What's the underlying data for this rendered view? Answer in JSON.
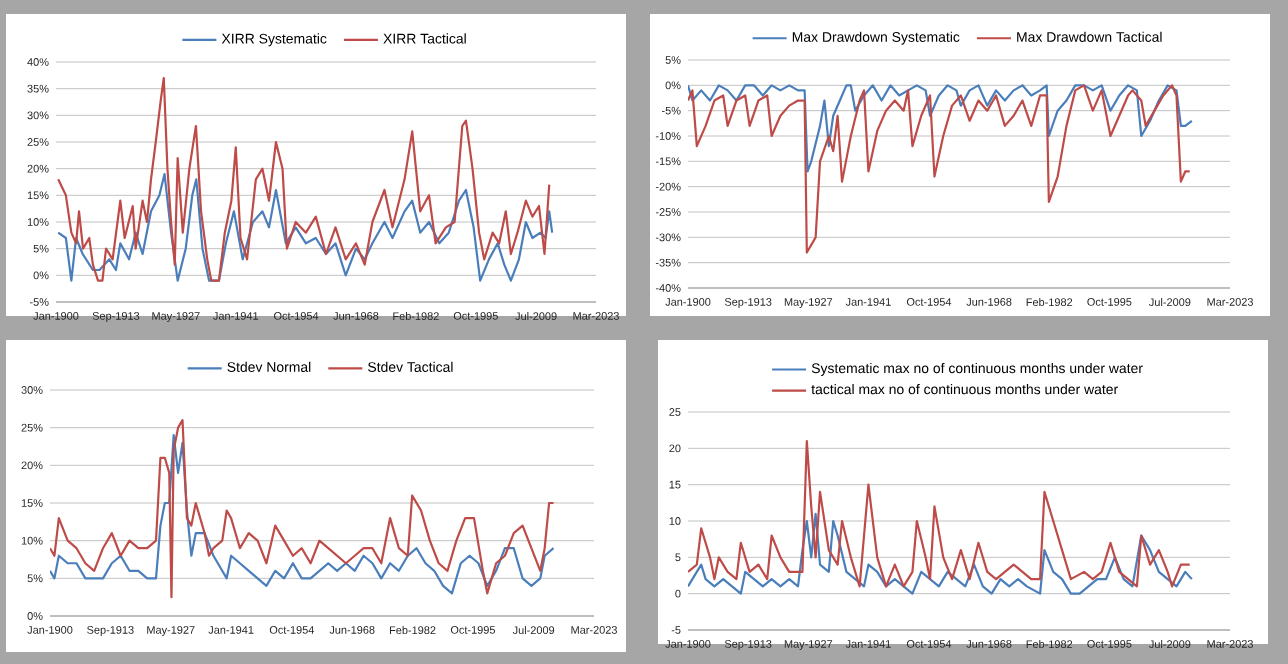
{
  "chart_data": [
    {
      "type": "line",
      "legend": "top",
      "grid": "y",
      "xlim": [
        "1900-01",
        "2023-03"
      ],
      "ylim": [
        -5,
        40
      ],
      "xticks": [
        {
          "value": "1900-01",
          "label": "Jan-1900"
        },
        {
          "value": "1913-09",
          "label": "Sep-1913"
        },
        {
          "value": "1927-05",
          "label": "May-1927"
        },
        {
          "value": "1941-01",
          "label": "Jan-1941"
        },
        {
          "value": "1954-10",
          "label": "Oct-1954"
        },
        {
          "value": "1968-06",
          "label": "Jun-1968"
        },
        {
          "value": "1982-02",
          "label": "Feb-1982"
        },
        {
          "value": "1995-10",
          "label": "Oct-1995"
        },
        {
          "value": "2009-07",
          "label": "Jul-2009"
        },
        {
          "value": "2023-03",
          "label": "Mar-2023"
        }
      ],
      "yticks": [
        {
          "value": -5,
          "label": "-5%"
        },
        {
          "value": 0,
          "label": "0%"
        },
        {
          "value": 5,
          "label": "5%"
        },
        {
          "value": 10,
          "label": "10%"
        },
        {
          "value": 15,
          "label": "15%"
        },
        {
          "value": 20,
          "label": "20%"
        },
        {
          "value": 25,
          "label": "25%"
        },
        {
          "value": 30,
          "label": "30%"
        },
        {
          "value": 35,
          "label": "35%"
        },
        {
          "value": 40,
          "label": "40%"
        }
      ],
      "series": [
        {
          "name": "XIRR Systematic",
          "color": "#4a7ebb",
          "x": [
            "1900-07",
            "1902-04",
            "1903-07",
            "1904-08",
            "1906-02",
            "1908-06",
            "1909-12",
            "1912-03",
            "1913-09",
            "1914-09",
            "1916-09",
            "1918-03",
            "1919-10",
            "1921-09",
            "1923-08",
            "1924-10",
            "1926-04",
            "1927-10",
            "1929-08",
            "1931-02",
            "1932-01",
            "1933-06",
            "1934-12",
            "1937-03",
            "1938-10",
            "1940-08",
            "1942-08",
            "1944-12",
            "1947-02",
            "1948-08",
            "1950-03",
            "1952-06",
            "1954-09",
            "1957-01",
            "1959-04",
            "1961-08",
            "1963-10",
            "1966-02",
            "1968-06",
            "1970-06",
            "1972-03",
            "1974-12",
            "1976-10",
            "1979-07",
            "1981-04",
            "1983-02",
            "1985-02",
            "1987-06",
            "1989-08",
            "1991-12",
            "1993-07",
            "1995-04",
            "1996-10",
            "1998-10",
            "2000-10",
            "2002-04",
            "2003-10",
            "2005-08",
            "2007-03",
            "2008-09",
            "2010-07",
            "2011-09",
            "2012-07",
            "2013-03"
          ],
          "values": [
            8,
            7,
            -1,
            7,
            4,
            1,
            1,
            3,
            1,
            6,
            3,
            8,
            4,
            12,
            15,
            19,
            8,
            -1,
            5,
            15,
            18,
            5,
            -1,
            -1,
            6,
            12,
            3,
            10,
            12,
            9,
            16,
            6,
            9,
            6,
            7,
            4,
            6,
            0,
            5,
            3,
            6,
            10,
            7,
            12,
            14,
            8,
            10,
            6,
            8,
            14,
            16,
            9,
            -1,
            3,
            6,
            2,
            -1,
            3,
            10,
            7,
            8,
            7,
            12,
            8
          ]
        },
        {
          "name": "XIRR Tactical",
          "color": "#be4b48",
          "x": [
            "1900-07",
            "1902-04",
            "1903-07",
            "1904-08",
            "1905-04",
            "1906-03",
            "1907-08",
            "1908-06",
            "1909-08",
            "1910-08",
            "1911-06",
            "1912-12",
            "1914-09",
            "1915-09",
            "1917-07",
            "1918-03",
            "1919-10",
            "1920-10",
            "1921-09",
            "1922-10",
            "1923-12",
            "1924-08",
            "1925-06",
            "1926-04",
            "1927-02",
            "1927-10",
            "1928-12",
            "1930-06",
            "1931-12",
            "1933-02",
            "1934-07",
            "1935-06",
            "1937-03",
            "1938-07",
            "1940-01",
            "1941-01",
            "1942-02",
            "1943-08",
            "1945-08",
            "1947-02",
            "1948-08",
            "1950-03",
            "1951-09",
            "1952-09",
            "1954-09",
            "1957-01",
            "1959-04",
            "1961-08",
            "1963-10",
            "1966-02",
            "1968-06",
            "1970-06",
            "1972-03",
            "1974-12",
            "1976-10",
            "1979-07",
            "1981-04",
            "1983-02",
            "1985-02",
            "1986-08",
            "1988-12",
            "1990-12",
            "1992-09",
            "1993-07",
            "1995-01",
            "1996-07",
            "1997-09",
            "1999-08",
            "2001-02",
            "2002-08",
            "2003-10",
            "2005-04",
            "2007-03",
            "2008-09",
            "2010-03",
            "2011-06",
            "2012-07"
          ],
          "values": [
            18,
            15,
            8,
            6,
            12,
            5,
            7,
            2,
            -1,
            -1,
            5,
            3,
            14,
            7,
            13,
            5,
            14,
            10,
            18,
            25,
            33,
            37,
            20,
            10,
            2,
            22,
            8,
            20,
            28,
            12,
            3,
            -1,
            -1,
            8,
            14,
            24,
            7,
            3,
            18,
            20,
            14,
            25,
            20,
            5,
            10,
            8,
            11,
            4,
            9,
            3,
            6,
            2,
            10,
            16,
            9,
            18,
            27,
            12,
            15,
            6,
            9,
            10,
            28,
            29,
            20,
            8,
            3,
            8,
            6,
            12,
            4,
            8,
            14,
            11,
            13,
            4,
            17
          ]
        }
      ]
    },
    {
      "type": "line",
      "legend": "top",
      "grid": "y",
      "xlim": [
        "1900-01",
        "2023-03"
      ],
      "ylim": [
        -40,
        5
      ],
      "xticks": [
        {
          "value": "1900-01",
          "label": "Jan-1900"
        },
        {
          "value": "1913-09",
          "label": "Sep-1913"
        },
        {
          "value": "1927-05",
          "label": "May-1927"
        },
        {
          "value": "1941-01",
          "label": "Jan-1941"
        },
        {
          "value": "1954-10",
          "label": "Oct-1954"
        },
        {
          "value": "1968-06",
          "label": "Jun-1968"
        },
        {
          "value": "1982-02",
          "label": "Feb-1982"
        },
        {
          "value": "1995-10",
          "label": "Oct-1995"
        },
        {
          "value": "2009-07",
          "label": "Jul-2009"
        },
        {
          "value": "2023-03",
          "label": "Mar-2023"
        }
      ],
      "yticks": [
        {
          "value": -40,
          "label": "-40%"
        },
        {
          "value": -35,
          "label": "-35%"
        },
        {
          "value": -30,
          "label": "-30%"
        },
        {
          "value": -25,
          "label": "-25%"
        },
        {
          "value": -20,
          "label": "-20%"
        },
        {
          "value": -15,
          "label": "-15%"
        },
        {
          "value": -10,
          "label": "-10%"
        },
        {
          "value": -5,
          "label": "-5%"
        },
        {
          "value": 0,
          "label": "0%"
        },
        {
          "value": 5,
          "label": "5%"
        }
      ],
      "series": [
        {
          "name": "Max Drawdown Systematic",
          "color": "#4a7ebb",
          "x": [
            "1900-01",
            "1901-01",
            "1903-01",
            "1905-01",
            "1907-01",
            "1909-01",
            "1911-01",
            "1913-01",
            "1915-01",
            "1917-01",
            "1919-01",
            "1921-01",
            "1923-01",
            "1925-01",
            "1926-07",
            "1927-03",
            "1928-01",
            "1930-01",
            "1931-01",
            "1932-01",
            "1933-01",
            "1935-01",
            "1936-01",
            "1937-01",
            "1938-01",
            "1940-01",
            "1942-01",
            "1944-01",
            "1946-01",
            "1948-01",
            "1950-01",
            "1952-01",
            "1954-01",
            "1955-01",
            "1957-01",
            "1959-01",
            "1961-01",
            "1962-01",
            "1964-01",
            "1966-01",
            "1968-01",
            "1970-01",
            "1972-01",
            "1974-01",
            "1976-01",
            "1978-01",
            "1980-01",
            "1981-07",
            "1982-01",
            "1984-01",
            "1986-01",
            "1988-01",
            "1990-01",
            "1992-01",
            "1994-01",
            "1996-01",
            "1998-01",
            "2000-01",
            "2002-01",
            "2003-01",
            "2005-01",
            "2007-01",
            "2009-01",
            "2011-01",
            "2012-01",
            "2013-01",
            "2014-07"
          ],
          "values": [
            0,
            -3,
            -1,
            -3,
            0,
            -1,
            -3,
            0,
            0,
            -2,
            0,
            -1,
            0,
            -1,
            -1,
            -17,
            -15,
            -8,
            -3,
            -12,
            -6,
            -2,
            0,
            0,
            -5,
            -2,
            0,
            -3,
            0,
            -2,
            -1,
            0,
            -1,
            -6,
            -2,
            0,
            -1,
            -4,
            -1,
            0,
            -4,
            -1,
            -3,
            -1,
            0,
            -2,
            -1,
            0,
            -10,
            -5,
            -3,
            0,
            0,
            -1,
            0,
            -5,
            -2,
            0,
            -1,
            -10,
            -7,
            -3,
            0,
            -1,
            -8,
            -8,
            -7
          ]
        },
        {
          "name": "Max Drawdown Tactical",
          "color": "#be4b48",
          "x": [
            "1900-01",
            "1901-01",
            "1902-01",
            "1904-01",
            "1906-01",
            "1908-01",
            "1909-01",
            "1911-01",
            "1913-01",
            "1914-01",
            "1916-01",
            "1918-01",
            "1919-01",
            "1921-01",
            "1923-01",
            "1925-01",
            "1926-07",
            "1927-01",
            "1929-01",
            "1930-01",
            "1932-01",
            "1933-01",
            "1934-01",
            "1935-01",
            "1937-01",
            "1939-01",
            "1940-01",
            "1941-01",
            "1943-01",
            "1945-01",
            "1947-01",
            "1949-01",
            "1950-01",
            "1951-01",
            "1953-01",
            "1955-01",
            "1956-01",
            "1958-01",
            "1960-01",
            "1962-01",
            "1964-01",
            "1966-01",
            "1968-01",
            "1970-01",
            "1972-01",
            "1974-01",
            "1976-01",
            "1978-01",
            "1980-01",
            "1981-07",
            "1982-01",
            "1984-01",
            "1986-01",
            "1988-01",
            "1990-01",
            "1992-01",
            "1994-01",
            "1996-01",
            "1998-01",
            "2000-01",
            "2001-01",
            "2003-01",
            "2004-01",
            "2006-01",
            "2008-01",
            "2010-01",
            "2011-01",
            "2012-01",
            "2013-01",
            "2014-01"
          ],
          "values": [
            -3,
            -1,
            -12,
            -8,
            -3,
            -2,
            -8,
            -3,
            -2,
            -8,
            -3,
            -2,
            -10,
            -6,
            -4,
            -3,
            -3,
            -33,
            -30,
            -15,
            -10,
            -13,
            -6,
            -19,
            -10,
            -3,
            -1,
            -17,
            -9,
            -5,
            -3,
            -5,
            -1,
            -12,
            -6,
            -2,
            -18,
            -10,
            -4,
            -2,
            -7,
            -3,
            -5,
            -2,
            -8,
            -6,
            -3,
            -8,
            -2,
            -2,
            -23,
            -18,
            -8,
            -1,
            0,
            -5,
            -1,
            -10,
            -6,
            -2,
            -1,
            -3,
            -8,
            -5,
            -2,
            0,
            -2,
            -19,
            -17,
            -17
          ]
        }
      ]
    },
    {
      "type": "line",
      "legend": "top",
      "grid": "y",
      "xlim": [
        "1900-01",
        "2023-03"
      ],
      "ylim": [
        0,
        30
      ],
      "xticks": [
        {
          "value": "1900-01",
          "label": "Jan-1900"
        },
        {
          "value": "1913-09",
          "label": "Sep-1913"
        },
        {
          "value": "1927-05",
          "label": "May-1927"
        },
        {
          "value": "1941-01",
          "label": "Jan-1941"
        },
        {
          "value": "1954-10",
          "label": "Oct-1954"
        },
        {
          "value": "1968-06",
          "label": "Jun-1968"
        },
        {
          "value": "1982-02",
          "label": "Feb-1982"
        },
        {
          "value": "1995-10",
          "label": "Oct-1995"
        },
        {
          "value": "2009-07",
          "label": "Jul-2009"
        },
        {
          "value": "2023-03",
          "label": "Mar-2023"
        }
      ],
      "yticks": [
        {
          "value": 0,
          "label": "0%"
        },
        {
          "value": 5,
          "label": "5%"
        },
        {
          "value": 10,
          "label": "10%"
        },
        {
          "value": 15,
          "label": "15%"
        },
        {
          "value": 20,
          "label": "20%"
        },
        {
          "value": 25,
          "label": "25%"
        },
        {
          "value": 30,
          "label": "30%"
        }
      ],
      "series": [
        {
          "name": "Stdev Normal",
          "color": "#4a7ebb",
          "x": [
            "1900-01",
            "1901-01",
            "1902-01",
            "1904-01",
            "1906-01",
            "1908-01",
            "1910-01",
            "1912-01",
            "1914-01",
            "1916-01",
            "1918-01",
            "1920-01",
            "1922-01",
            "1924-01",
            "1925-01",
            "1926-01",
            "1927-01",
            "1928-01",
            "1929-01",
            "1930-01",
            "1931-01",
            "1932-01",
            "1933-01",
            "1935-01",
            "1937-01",
            "1939-01",
            "1940-01",
            "1941-01",
            "1943-01",
            "1945-01",
            "1947-01",
            "1949-01",
            "1951-01",
            "1953-01",
            "1955-01",
            "1957-01",
            "1959-01",
            "1961-01",
            "1963-01",
            "1965-01",
            "1967-01",
            "1969-01",
            "1971-01",
            "1973-01",
            "1975-01",
            "1977-01",
            "1979-01",
            "1981-01",
            "1983-01",
            "1985-01",
            "1987-01",
            "1989-01",
            "1991-01",
            "1993-01",
            "1995-01",
            "1997-01",
            "1999-01",
            "2001-01",
            "2003-01",
            "2005-01",
            "2007-01",
            "2009-01",
            "2011-01",
            "2012-01",
            "2014-01"
          ],
          "values": [
            6,
            5,
            8,
            7,
            7,
            5,
            5,
            5,
            7,
            8,
            6,
            6,
            5,
            5,
            12,
            15,
            15,
            24,
            19,
            23,
            14,
            8,
            11,
            11,
            8,
            6,
            5,
            8,
            7,
            6,
            5,
            4,
            6,
            5,
            7,
            5,
            5,
            6,
            7,
            6,
            7,
            6,
            8,
            7,
            5,
            7,
            6,
            8,
            9,
            7,
            6,
            4,
            3,
            7,
            8,
            7,
            4,
            6,
            9,
            9,
            5,
            4,
            5,
            8,
            9
          ]
        },
        {
          "name": "Stdev Tactical",
          "color": "#be4b48",
          "x": [
            "1900-01",
            "1901-01",
            "1902-01",
            "1904-01",
            "1906-01",
            "1908-01",
            "1910-01",
            "1912-01",
            "1914-01",
            "1916-01",
            "1918-01",
            "1920-01",
            "1922-01",
            "1924-01",
            "1925-01",
            "1926-01",
            "1927-01",
            "1927-07",
            "1928-01",
            "1929-01",
            "1930-01",
            "1931-01",
            "1932-01",
            "1933-01",
            "1935-01",
            "1936-01",
            "1937-01",
            "1939-01",
            "1940-01",
            "1941-01",
            "1943-01",
            "1945-01",
            "1947-01",
            "1949-01",
            "1951-01",
            "1953-01",
            "1955-01",
            "1957-01",
            "1959-01",
            "1961-01",
            "1963-01",
            "1965-01",
            "1967-01",
            "1969-01",
            "1971-01",
            "1973-01",
            "1975-01",
            "1977-01",
            "1979-01",
            "1981-01",
            "1982-01",
            "1984-01",
            "1986-01",
            "1988-01",
            "1990-01",
            "1992-01",
            "1994-01",
            "1996-01",
            "1998-01",
            "1999-01",
            "2001-01",
            "2003-01",
            "2005-01",
            "2007-01",
            "2009-01",
            "2011-01",
            "2012-01",
            "2013-01",
            "2014-01"
          ],
          "values": [
            9,
            8,
            13,
            10,
            9,
            7,
            6,
            9,
            11,
            8,
            10,
            9,
            9,
            10,
            21,
            21,
            19,
            2.5,
            22,
            25,
            26,
            13,
            12,
            15,
            11,
            8,
            9,
            10,
            14,
            13,
            9,
            11,
            10,
            7,
            12,
            10,
            8,
            9,
            7,
            10,
            9,
            8,
            7,
            8,
            9,
            9,
            7,
            13,
            9,
            8,
            16,
            14,
            10,
            7,
            6,
            10,
            13,
            13,
            6,
            3,
            7,
            8,
            11,
            12,
            9,
            6,
            9,
            15,
            15
          ]
        }
      ]
    },
    {
      "type": "line",
      "legend": "top",
      "grid": "y",
      "xlim": [
        "1900-01",
        "2023-03"
      ],
      "ylim": [
        -5,
        25
      ],
      "xticks": [
        {
          "value": "1900-01",
          "label": "Jan-1900"
        },
        {
          "value": "1913-09",
          "label": "Sep-1913"
        },
        {
          "value": "1927-05",
          "label": "May-1927"
        },
        {
          "value": "1941-01",
          "label": "Jan-1941"
        },
        {
          "value": "1954-10",
          "label": "Oct-1954"
        },
        {
          "value": "1968-06",
          "label": "Jun-1968"
        },
        {
          "value": "1982-02",
          "label": "Feb-1982"
        },
        {
          "value": "1995-10",
          "label": "Oct-1995"
        },
        {
          "value": "2009-07",
          "label": "Jul-2009"
        },
        {
          "value": "2023-03",
          "label": "Mar-2023"
        }
      ],
      "yticks": [
        -5,
        0,
        5,
        10,
        15,
        20,
        25
      ],
      "series": [
        {
          "name": "Systematic max no of continuous months under water",
          "color": "#4a7ebb",
          "x": [
            "1900-01",
            "1901-01",
            "1903-01",
            "1904-01",
            "1906-01",
            "1908-01",
            "1910-01",
            "1912-01",
            "1913-01",
            "1915-01",
            "1917-01",
            "1919-01",
            "1921-01",
            "1923-01",
            "1925-01",
            "1926-01",
            "1927-01",
            "1928-01",
            "1929-01",
            "1930-01",
            "1932-01",
            "1933-01",
            "1934-01",
            "1936-01",
            "1938-01",
            "1940-01",
            "1941-01",
            "1943-01",
            "1945-01",
            "1947-01",
            "1949-01",
            "1951-01",
            "1953-01",
            "1955-01",
            "1957-01",
            "1959-01",
            "1961-01",
            "1963-01",
            "1965-01",
            "1967-01",
            "1969-01",
            "1971-01",
            "1973-01",
            "1975-01",
            "1977-01",
            "1980-01",
            "1981-01",
            "1983-01",
            "1985-01",
            "1987-01",
            "1989-01",
            "1991-01",
            "1993-01",
            "1995-01",
            "1997-01",
            "1999-01",
            "2001-01",
            "2003-01",
            "2005-01",
            "2007-01",
            "2009-01",
            "2011-01",
            "2013-01",
            "2014-07"
          ],
          "values": [
            1,
            2,
            4,
            2,
            1,
            2,
            1,
            0,
            3,
            2,
            1,
            2,
            1,
            2,
            1,
            6,
            10,
            5,
            11,
            4,
            3,
            10,
            8,
            3,
            2,
            1,
            4,
            3,
            1,
            2,
            1,
            0,
            3,
            2,
            1,
            3,
            2,
            1,
            4,
            1,
            0,
            2,
            1,
            2,
            1,
            0,
            6,
            3,
            2,
            0,
            0,
            1,
            2,
            2,
            5,
            2,
            1,
            8,
            6,
            3,
            2,
            1,
            3,
            2
          ]
        },
        {
          "name": "tactical max no of continuous months under water",
          "color": "#be4b48",
          "x": [
            "1900-01",
            "1902-01",
            "1903-01",
            "1905-01",
            "1906-01",
            "1907-01",
            "1909-01",
            "1911-01",
            "1912-01",
            "1914-01",
            "1916-01",
            "1918-01",
            "1919-01",
            "1921-01",
            "1923-01",
            "1926-01",
            "1927-01",
            "1928-01",
            "1929-01",
            "1930-01",
            "1932-01",
            "1934-01",
            "1935-01",
            "1937-01",
            "1939-01",
            "1941-01",
            "1943-01",
            "1945-01",
            "1947-01",
            "1949-01",
            "1951-01",
            "1952-01",
            "1954-01",
            "1955-01",
            "1956-01",
            "1958-01",
            "1960-01",
            "1962-01",
            "1964-01",
            "1966-01",
            "1968-01",
            "1970-01",
            "1972-01",
            "1974-01",
            "1976-01",
            "1978-01",
            "1980-01",
            "1981-01",
            "1983-01",
            "1985-01",
            "1987-01",
            "1990-01",
            "1992-01",
            "1994-01",
            "1996-01",
            "1998-01",
            "2000-01",
            "2002-01",
            "2003-01",
            "2005-01",
            "2007-01",
            "2009-01",
            "2010-01",
            "2012-01",
            "2014-01"
          ],
          "values": [
            3,
            4,
            9,
            5,
            2,
            5,
            3,
            2,
            7,
            3,
            4,
            2,
            8,
            5,
            3,
            3,
            21,
            12,
            5,
            14,
            6,
            4,
            10,
            5,
            1,
            15,
            5,
            1,
            4,
            1,
            3,
            10,
            5,
            2,
            12,
            5,
            2,
            6,
            2,
            7,
            3,
            2,
            3,
            4,
            3,
            2,
            2,
            14,
            10,
            6,
            2,
            3,
            2,
            3,
            7,
            3,
            2,
            1,
            8,
            4,
            6,
            3,
            1,
            4,
            4
          ]
        }
      ]
    }
  ]
}
